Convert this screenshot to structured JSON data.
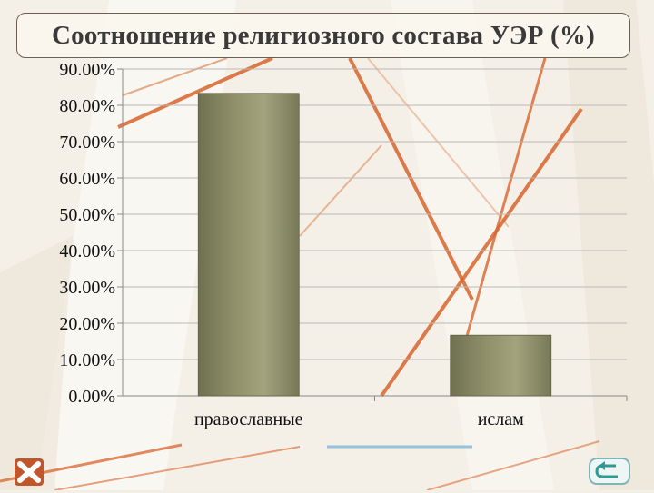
{
  "colors": {
    "bar_fill": "#8f906a",
    "grid": "#b9b9b9",
    "accent": "#d8652d",
    "nav_button": "#c0562b",
    "nav_back": "#7fb6b3"
  },
  "chart_data": {
    "type": "bar",
    "title": "Соотношение религиозного состава УЭР (%)",
    "categories": [
      "православные",
      "ислам"
    ],
    "values": [
      83.3,
      16.7
    ],
    "ylim": [
      0,
      90
    ],
    "yticks": [
      "0.00%",
      "10.00%",
      "20.00%",
      "30.00%",
      "40.00%",
      "50.00%",
      "60.00%",
      "70.00%",
      "80.00%",
      "90.00%"
    ],
    "grid": true,
    "legend": "none",
    "xlabel": "",
    "ylabel": ""
  },
  "nav": {
    "close_icon": "x-cross-icon",
    "back_icon": "u-turn-arrow-icon"
  }
}
